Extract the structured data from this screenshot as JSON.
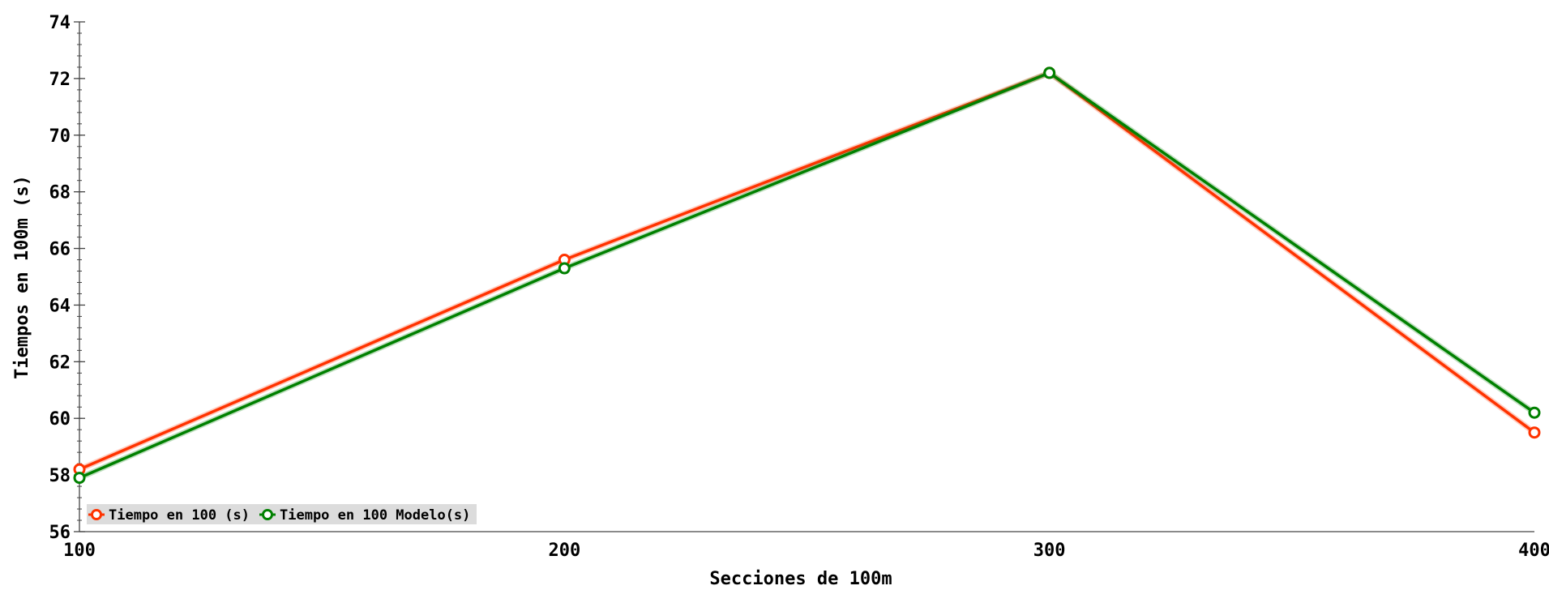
{
  "chart_data": {
    "type": "line",
    "title": "",
    "xlabel": "Secciones de 100m",
    "ylabel": "Tiempos en 100m (s)",
    "x": [
      100,
      200,
      300,
      400
    ],
    "x_ticks": [
      "100",
      "200",
      "300",
      "400"
    ],
    "xlim": [
      100,
      400
    ],
    "ylim": [
      56,
      74
    ],
    "y_ticks": [
      56,
      58,
      60,
      62,
      64,
      66,
      68,
      70,
      72,
      74
    ],
    "grid": false,
    "legend_position": "bottom-left",
    "series": [
      {
        "name": "Tiempo en 100 (s)",
        "color": "#ff3300",
        "values": [
          58.2,
          65.6,
          72.2,
          59.5
        ]
      },
      {
        "name": "Tiempo en 100 Modelo(s)",
        "color": "#008000",
        "values": [
          57.9,
          65.3,
          72.2,
          60.2
        ]
      }
    ]
  }
}
